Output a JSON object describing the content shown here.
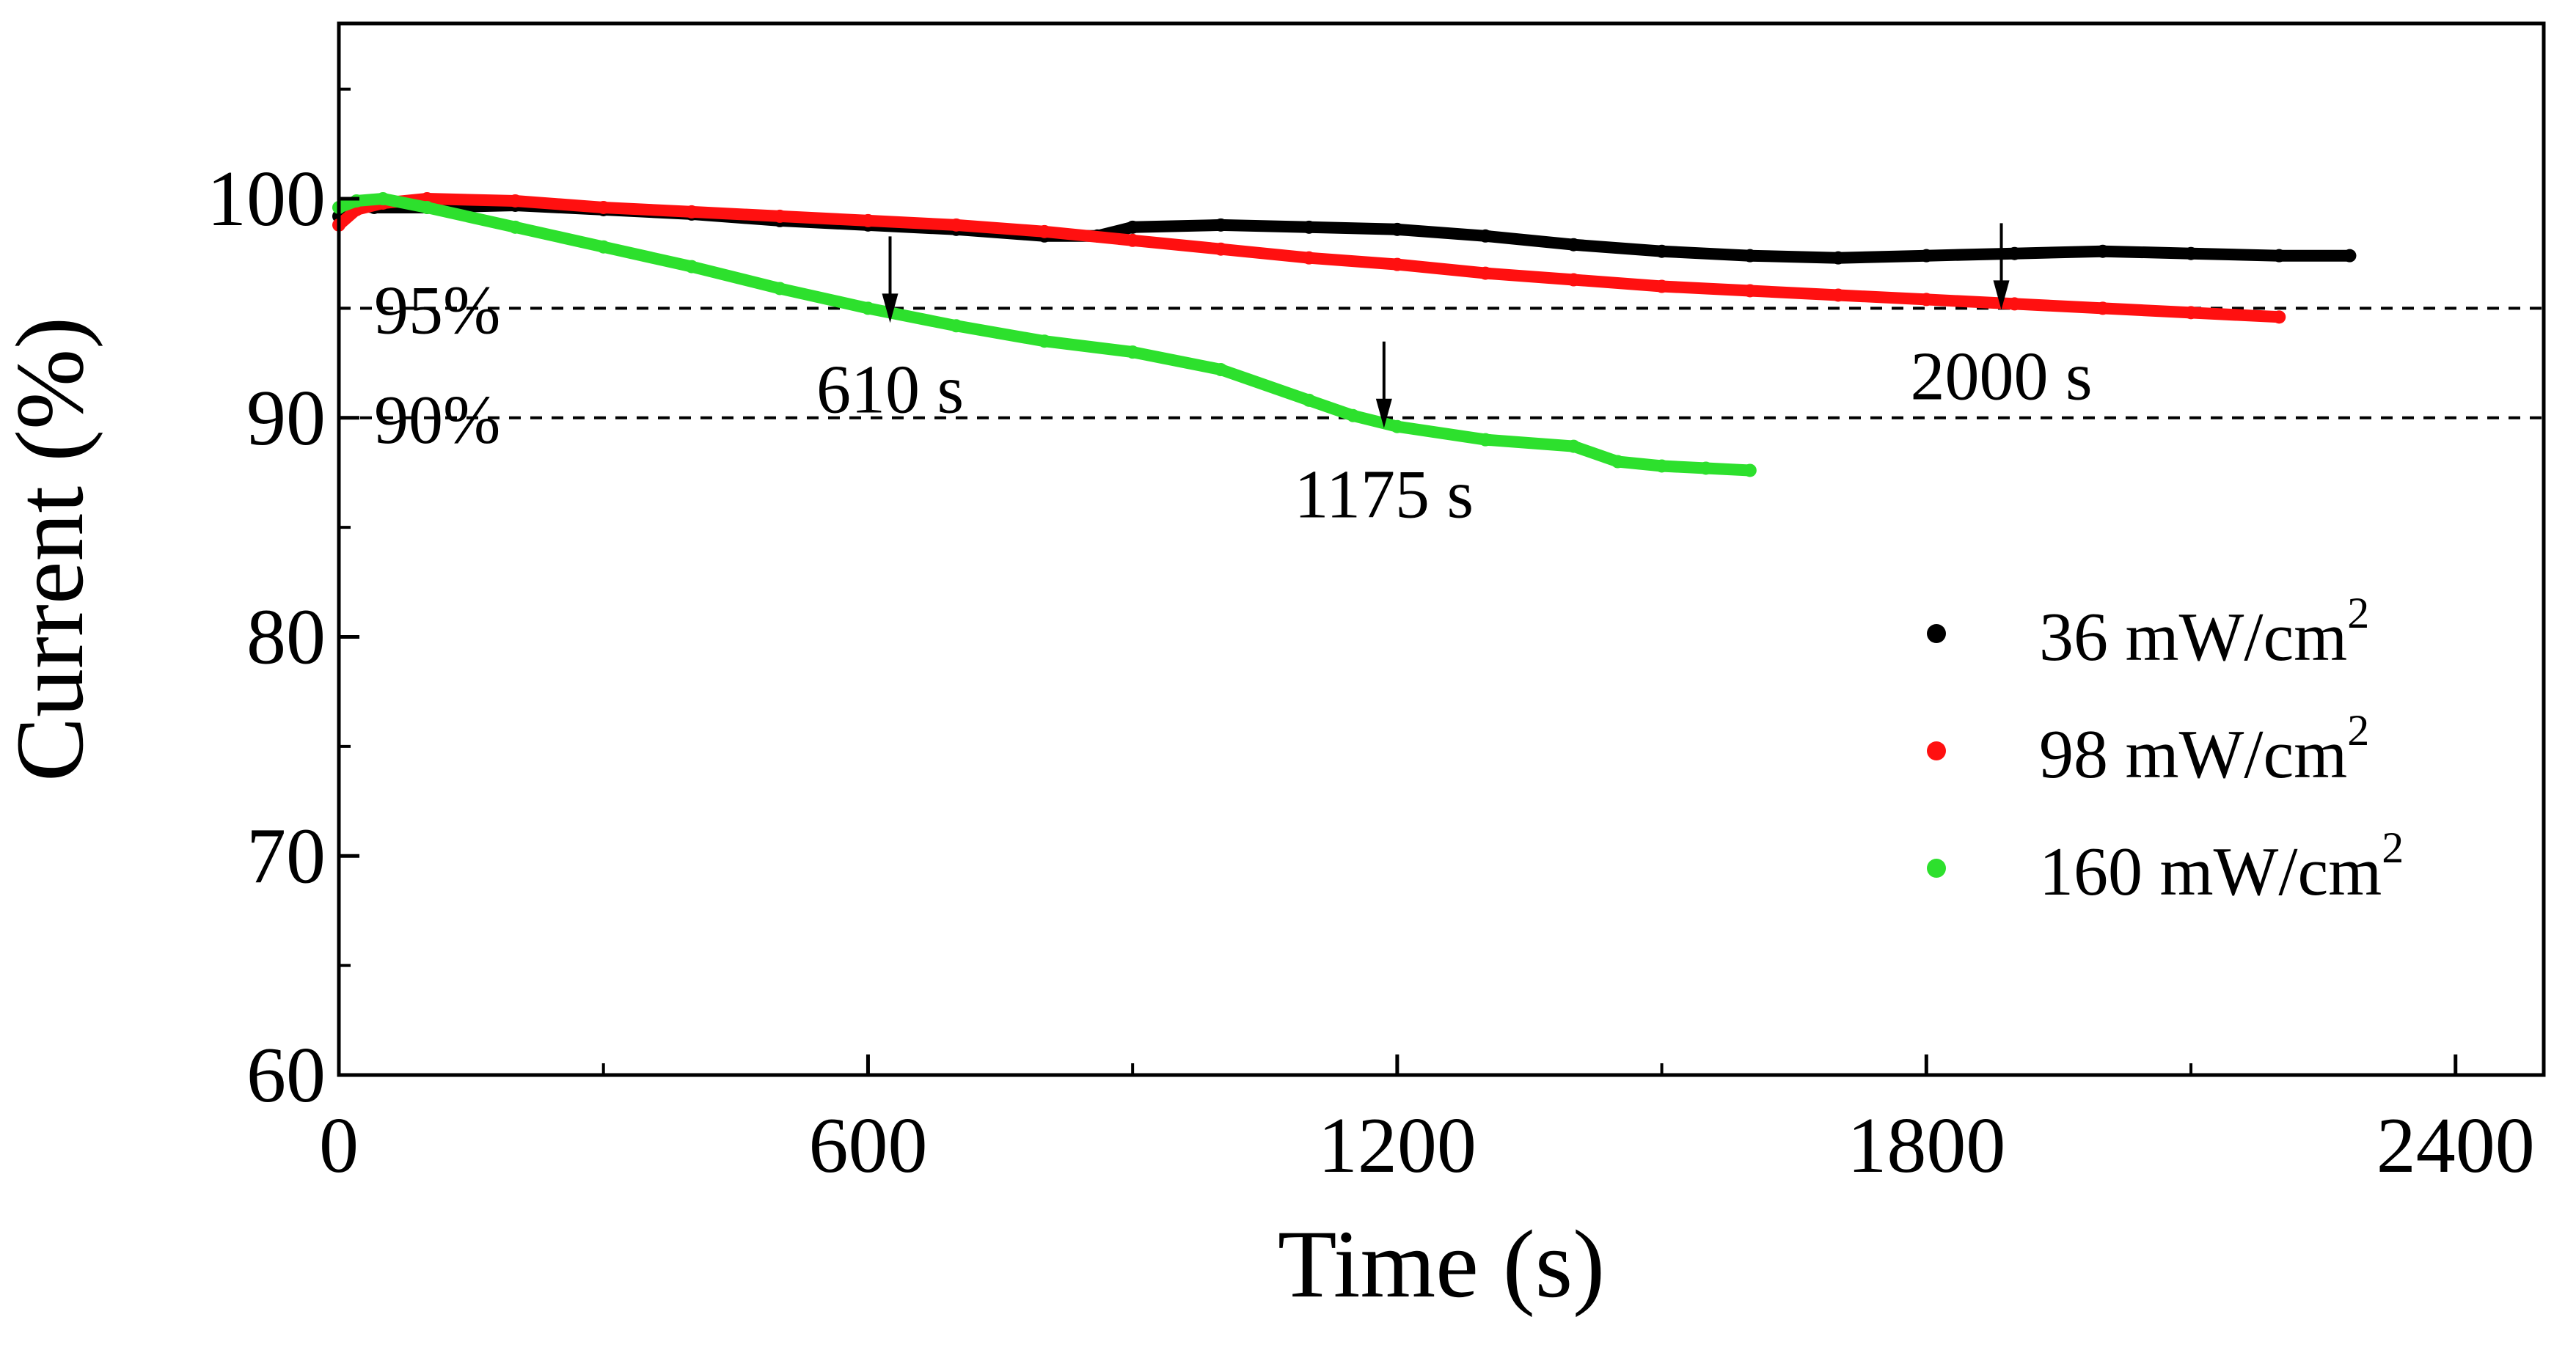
{
  "chart_data": {
    "type": "line",
    "title": "",
    "xlabel": "Time (s)",
    "ylabel": "Current (%)",
    "xlim": [
      0,
      2500
    ],
    "ylim": [
      60,
      108
    ],
    "xticks": [
      0,
      600,
      1200,
      1800,
      2400
    ],
    "xtick_labels": [
      "0",
      "600",
      "1200",
      "1800",
      "2400"
    ],
    "yticks": [
      60,
      70,
      80,
      90,
      100
    ],
    "ytick_labels": [
      "60",
      "70",
      "80",
      "90",
      "100"
    ],
    "grid": false,
    "legend_position": "right",
    "reference_lines": [
      {
        "y": 95,
        "label": "95%",
        "style": "dashed"
      },
      {
        "y": 90,
        "label": "90%",
        "style": "dashed"
      }
    ],
    "annotations": [
      {
        "text": "610 s",
        "x": 625,
        "y": 94.6
      },
      {
        "text": "1175 s",
        "x": 1185,
        "y": 89.8
      },
      {
        "text": "2000 s",
        "x": 1885,
        "y": 95.2
      }
    ],
    "series": [
      {
        "name": "36 mW/cm",
        "superscript": "2",
        "color": "#000000",
        "x": [
          0,
          20,
          40,
          100,
          200,
          300,
          400,
          500,
          600,
          700,
          800,
          860,
          900,
          1000,
          1100,
          1200,
          1300,
          1400,
          1500,
          1600,
          1700,
          1800,
          1900,
          2000,
          2100,
          2200,
          2280
        ],
        "y": [
          99.2,
          99.7,
          99.6,
          99.6,
          99.7,
          99.5,
          99.3,
          99.0,
          98.8,
          98.6,
          98.3,
          98.3,
          98.7,
          98.8,
          98.7,
          98.6,
          98.3,
          97.9,
          97.6,
          97.4,
          97.3,
          97.4,
          97.5,
          97.6,
          97.5,
          97.4,
          97.4
        ]
      },
      {
        "name": "98 mW/cm",
        "superscript": "2",
        "color": "#ff1010",
        "x": [
          0,
          20,
          50,
          100,
          200,
          300,
          400,
          500,
          600,
          700,
          800,
          900,
          1000,
          1100,
          1200,
          1300,
          1400,
          1500,
          1600,
          1700,
          1800,
          1900,
          2000,
          2100,
          2200
        ],
        "y": [
          98.8,
          99.5,
          99.8,
          100.0,
          99.9,
          99.6,
          99.4,
          99.2,
          99.0,
          98.8,
          98.5,
          98.1,
          97.7,
          97.3,
          97.0,
          96.6,
          96.3,
          96.0,
          95.8,
          95.6,
          95.4,
          95.2,
          95.0,
          94.8,
          94.6
        ]
      },
      {
        "name": "160 mW/cm",
        "superscript": "2",
        "color": "#2de02d",
        "x": [
          0,
          20,
          50,
          100,
          200,
          300,
          400,
          500,
          600,
          700,
          800,
          900,
          1000,
          1100,
          1150,
          1200,
          1300,
          1400,
          1450,
          1500,
          1550,
          1600
        ],
        "y": [
          99.6,
          99.9,
          100.0,
          99.6,
          98.7,
          97.8,
          96.9,
          95.9,
          95.0,
          94.2,
          93.5,
          93.0,
          92.2,
          90.8,
          90.1,
          89.6,
          89.0,
          88.7,
          88.0,
          87.8,
          87.7,
          87.6
        ]
      }
    ]
  }
}
